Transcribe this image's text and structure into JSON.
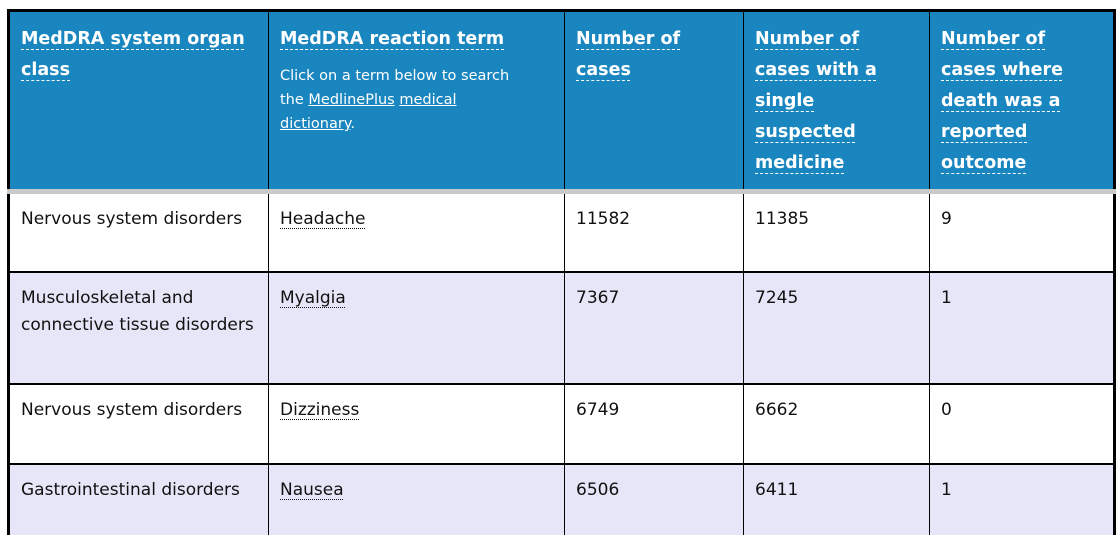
{
  "colors": {
    "header_bg": "#1a86bf",
    "header_text": "#ffffff",
    "row_bg": "#ffffff",
    "alt_row_bg": "#e6e6f8",
    "table_border": "#000000",
    "header_divider": "#c9c9c9",
    "body_text": "#111111"
  },
  "table": {
    "headers": {
      "organ_class": "MedDRA system organ class",
      "reaction_term": "MedDRA reaction term",
      "note": {
        "prefix": "Click on a term below to search the ",
        "link1": "MedlinePlus",
        "mid": " ",
        "link2": "medical dictionary",
        "suffix": "."
      },
      "cases": "Number of cases",
      "single_suspected": "Number of cases with a single suspected medicine",
      "death_outcome": "Number of cases where death was a reported outcome"
    },
    "rows": [
      {
        "organ_class": "Nervous system disorders",
        "term": "Headache",
        "cases": "11582",
        "single_suspected": "11385",
        "deaths": "9"
      },
      {
        "organ_class": "Musculoskeletal and connective tissue disorders",
        "term": "Myalgia",
        "cases": "7367",
        "single_suspected": "7245",
        "deaths": "1"
      },
      {
        "organ_class": "Nervous system disorders",
        "term": "Dizziness",
        "cases": "6749",
        "single_suspected": "6662",
        "deaths": "0"
      },
      {
        "organ_class": "Gastrointestinal disorders",
        "term": "Nausea",
        "cases": "6506",
        "single_suspected": "6411",
        "deaths": "1"
      }
    ]
  }
}
